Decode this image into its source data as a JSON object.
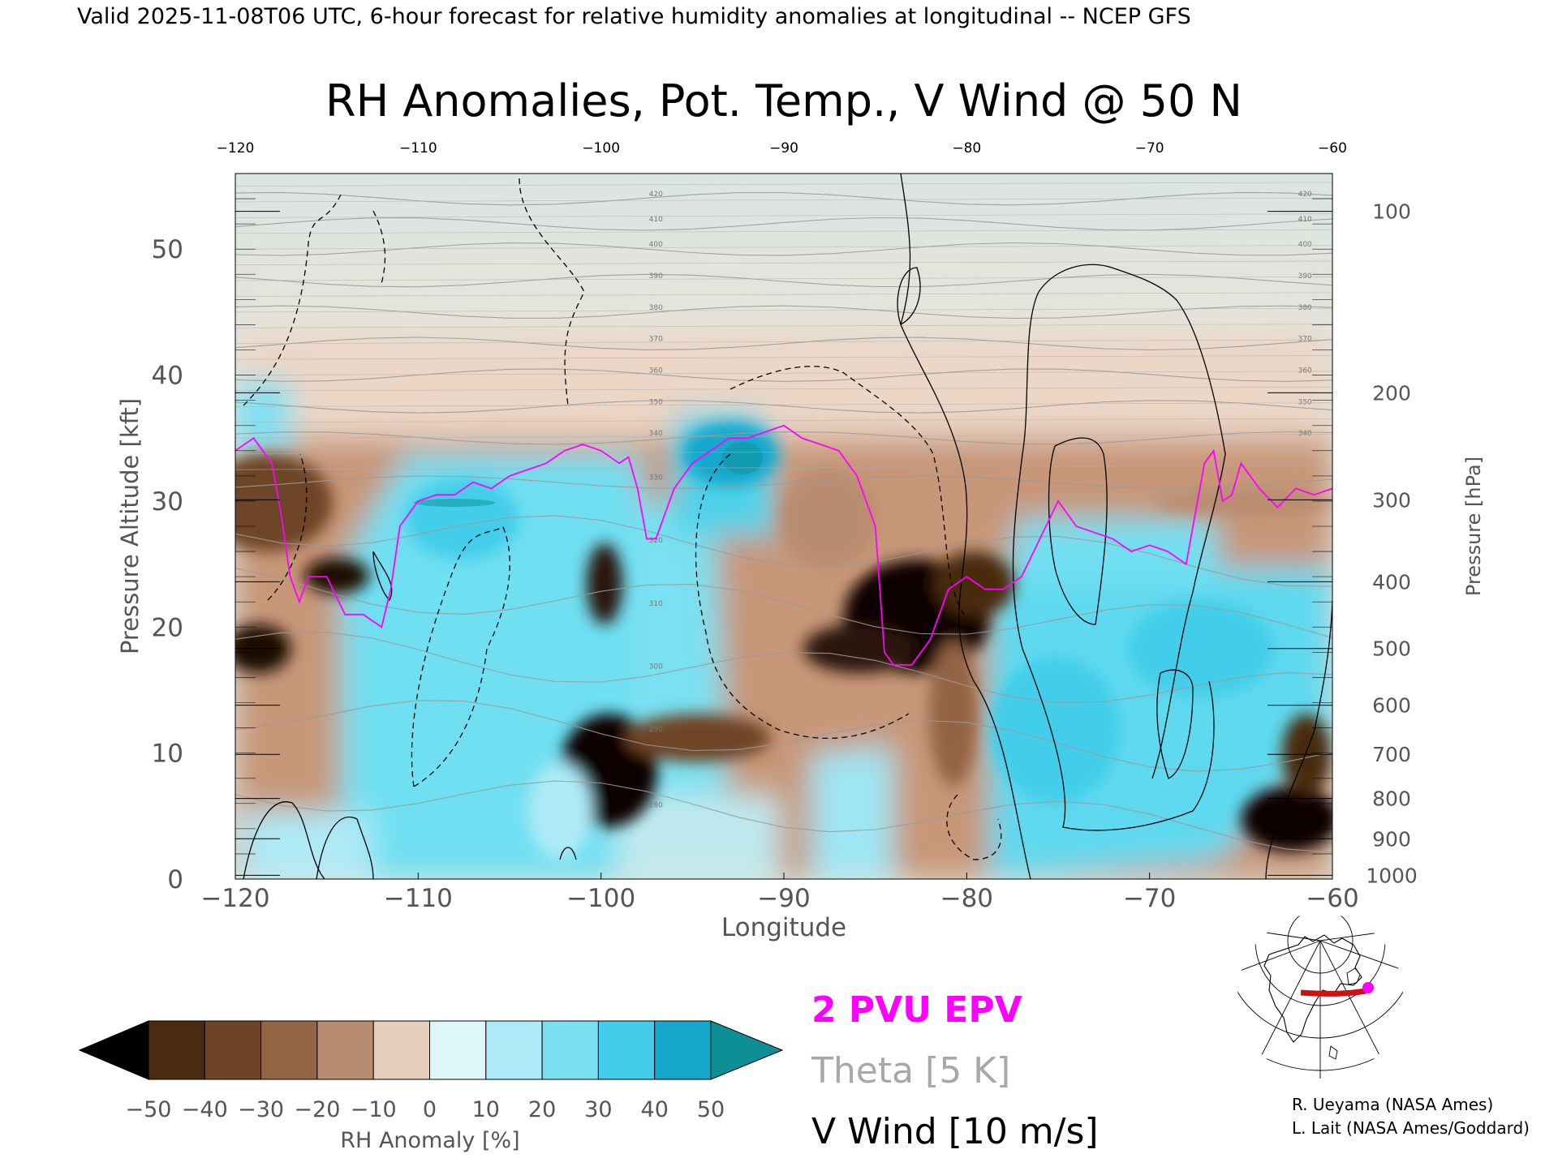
{
  "header": {
    "valid_line": "Valid 2025-11-08T06 UTC, 6-hour forecast for relative humidity anomalies at longitudinal -- NCEP GFS"
  },
  "chart_data": {
    "type": "heatmap",
    "title": "RH Anomalies, Pot. Temp., V Wind @ 50 N",
    "xlabel": "Longitude",
    "ylabel_left": "Pressure Altitude [kft]",
    "ylabel_right": "Pressure [hPa]",
    "xlim": [
      -120,
      -60
    ],
    "ylim": [
      0,
      56
    ],
    "x_ticks": [
      -120,
      -110,
      -100,
      -90,
      -80,
      -70,
      -60
    ],
    "x_tick_labels": [
      "−120",
      "−110",
      "−100",
      "−90",
      "−80",
      "−70",
      "−60"
    ],
    "x_top_tick_labels": [
      "−120",
      "−110",
      "−100",
      "−90",
      "−80",
      "−70",
      "−60"
    ],
    "y_ticks": [
      0,
      10,
      20,
      30,
      40,
      50
    ],
    "y_tick_labels": [
      "0",
      "10",
      "20",
      "30",
      "40",
      "50"
    ],
    "pressure_ticks": [
      {
        "hpa": "100",
        "kft": 53.0
      },
      {
        "hpa": "200",
        "kft": 38.6
      },
      {
        "hpa": "300",
        "kft": 30.1
      },
      {
        "hpa": "400",
        "kft": 23.6
      },
      {
        "hpa": "500",
        "kft": 18.3
      },
      {
        "hpa": "600",
        "kft": 13.8
      },
      {
        "hpa": "700",
        "kft": 9.9
      },
      {
        "hpa": "800",
        "kft": 6.4
      },
      {
        "hpa": "900",
        "kft": 3.2
      },
      {
        "hpa": "1000",
        "kft": 0.3
      }
    ],
    "colorbar": {
      "label": "RH Anomaly [%]",
      "ticks": [
        "−50",
        "−40",
        "−30",
        "−20",
        "−10",
        "0",
        "10",
        "20",
        "30",
        "40",
        "50"
      ],
      "colors": [
        "#000000",
        "#4a2a10",
        "#6e4427",
        "#946445",
        "#b88c70",
        "#e6ccbc",
        "#dff6fb",
        "#aeeaf7",
        "#79dff3",
        "#43cdea",
        "#13a7cc",
        "#0e8f95"
      ]
    },
    "theta_levels": [
      {
        "value": "280",
        "kft": 5.5
      },
      {
        "value": "290",
        "kft": 11.5
      },
      {
        "value": "300",
        "kft": 16.5
      },
      {
        "value": "310",
        "kft": 21.5
      },
      {
        "value": "320",
        "kft": 26.5
      },
      {
        "value": "330",
        "kft": 31.5
      },
      {
        "value": "340",
        "kft": 35.0
      },
      {
        "value": "350",
        "kft": 37.5
      },
      {
        "value": "360",
        "kft": 40.0
      },
      {
        "value": "370",
        "kft": 42.5
      },
      {
        "value": "380",
        "kft": 45.0
      },
      {
        "value": "390",
        "kft": 47.5
      },
      {
        "value": "400",
        "kft": 50.0
      },
      {
        "value": "410",
        "kft": 52.0
      },
      {
        "value": "420",
        "kft": 54.0
      }
    ],
    "epv_2pvu_line": {
      "x": [
        -120,
        -119,
        -118,
        -117.5,
        -117,
        -116.5,
        -116,
        -115,
        -114,
        -113,
        -112,
        -111.5,
        -111,
        -110,
        -109,
        -108,
        -107,
        -106,
        -105,
        -104,
        -103,
        -102,
        -101,
        -100,
        -99,
        -98.5,
        -98,
        -97.5,
        -97,
        -96,
        -95,
        -94,
        -93,
        -92,
        -91,
        -90,
        -89,
        -88,
        -87,
        -86,
        -85,
        -84.5,
        -84,
        -83,
        -82,
        -81,
        -80,
        -79,
        -78,
        -77,
        -76,
        -75,
        -74,
        -73,
        -72,
        -71,
        -70,
        -69,
        -68,
        -67,
        -66.5,
        -66,
        -65.5,
        -65,
        -64,
        -63,
        -62,
        -61,
        -60
      ],
      "y": [
        34,
        35,
        33,
        29,
        24,
        22,
        24,
        24,
        21,
        21,
        20,
        23,
        28,
        30,
        30.5,
        30.5,
        31.5,
        31,
        32,
        32.5,
        33,
        34,
        34.5,
        34,
        33,
        33.5,
        31,
        27,
        27,
        31,
        33,
        34,
        35,
        35,
        35.5,
        36,
        35,
        34.5,
        34,
        32,
        28,
        18,
        17,
        17,
        19,
        23,
        24,
        23,
        23,
        24,
        27,
        30,
        28,
        27.5,
        27,
        26,
        26.5,
        26,
        25,
        33,
        34,
        30,
        30.5,
        33,
        31,
        29.5,
        31,
        30.5,
        31
      ]
    },
    "v_wind_contours": [
      {
        "label": "10",
        "style": "dashed"
      },
      {
        "label": "0",
        "style": "solid"
      },
      {
        "label": "-10",
        "style": "dashed"
      }
    ],
    "legend": [
      "2 PVU EPV",
      "Theta [5 K]",
      "V Wind [10 m/s]"
    ],
    "legend_colors": [
      "#ff00ff",
      "#a8a8a8",
      "#000000"
    ]
  },
  "credits": [
    "R. Ueyama (NASA Ames)",
    "L. Lait (NASA Ames/Goddard)"
  ],
  "inset_map": {
    "highlight_color": "#cc1111",
    "marker_color": "#ff00ff"
  }
}
